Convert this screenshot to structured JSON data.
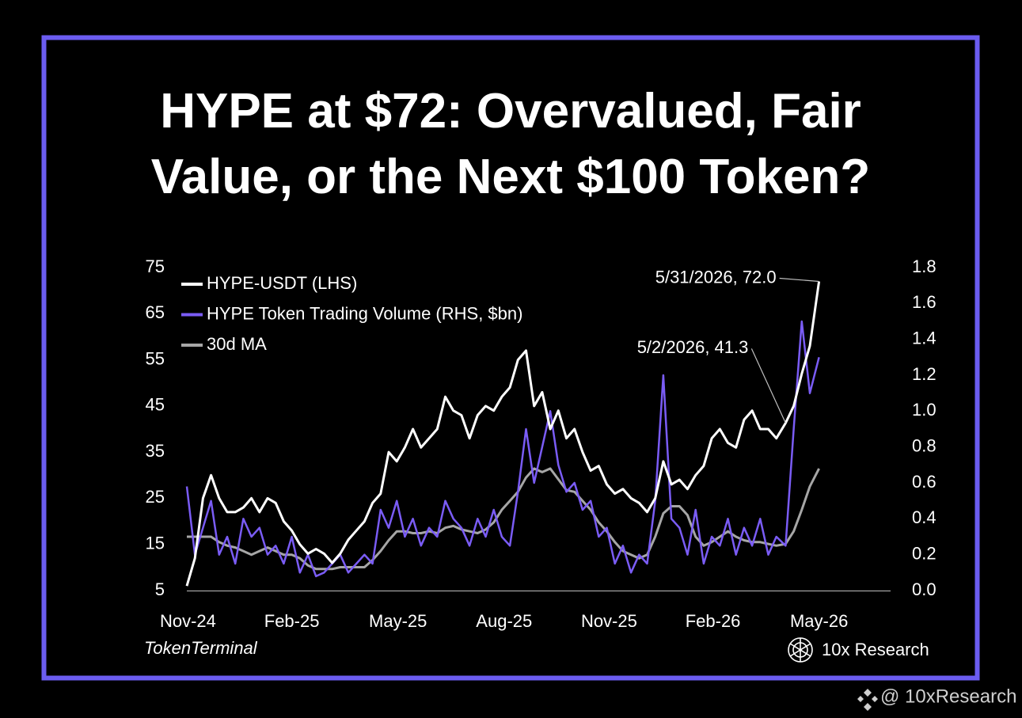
{
  "chart_data": {
    "type": "line",
    "title": "HYPE at $72: Overvalued, Fair Value, or the Next $100 Token?",
    "source": "TokenTerminal",
    "brand": "10x Research",
    "footer": "@ 10xResearch",
    "grid": false,
    "x": [
      "2024-11-29",
      "2024-12-06",
      "2024-12-13",
      "2024-12-20",
      "2024-12-27",
      "2025-01-03",
      "2025-01-10",
      "2025-01-17",
      "2025-01-24",
      "2025-01-31",
      "2025-02-07",
      "2025-02-14",
      "2025-02-21",
      "2025-02-28",
      "2025-03-07",
      "2025-03-14",
      "2025-03-21",
      "2025-03-28",
      "2025-04-04",
      "2025-04-11",
      "2025-04-18",
      "2025-04-25",
      "2025-05-02",
      "2025-05-09",
      "2025-05-16",
      "2025-05-23",
      "2025-05-30",
      "2025-06-06",
      "2025-06-13",
      "2025-06-20",
      "2025-06-27",
      "2025-07-04",
      "2025-07-11",
      "2025-07-18",
      "2025-07-25",
      "2025-08-01",
      "2025-08-08",
      "2025-08-15",
      "2025-08-22",
      "2025-08-29",
      "2025-09-05",
      "2025-09-12",
      "2025-09-19",
      "2025-09-26",
      "2025-10-03",
      "2025-10-10",
      "2025-10-17",
      "2025-10-24",
      "2025-10-31",
      "2025-11-07",
      "2025-11-14",
      "2025-11-21",
      "2025-11-28",
      "2025-12-05",
      "2025-12-12",
      "2025-12-19",
      "2025-12-26",
      "2026-01-02",
      "2026-01-09",
      "2026-01-16",
      "2026-01-23",
      "2026-01-30",
      "2026-02-06",
      "2026-02-13",
      "2026-02-20",
      "2026-02-27",
      "2026-03-06",
      "2026-03-13",
      "2026-03-20",
      "2026-03-27",
      "2026-04-03",
      "2026-04-10",
      "2026-04-17",
      "2026-04-24",
      "2026-05-02",
      "2026-05-09",
      "2026-05-16",
      "2026-05-23",
      "2026-05-31"
    ],
    "xlim": [
      "2024-11-29",
      "2026-08-01"
    ],
    "xticks": [
      {
        "value": "2024-11-30",
        "label": "Nov-24"
      },
      {
        "value": "2025-02-28",
        "label": "Feb-25"
      },
      {
        "value": "2025-05-31",
        "label": "May-25"
      },
      {
        "value": "2025-08-31",
        "label": "Aug-25"
      },
      {
        "value": "2025-11-30",
        "label": "Nov-25"
      },
      {
        "value": "2026-02-28",
        "label": "Feb-26"
      },
      {
        "value": "2026-05-31",
        "label": "May-26"
      }
    ],
    "ylim": [
      5,
      75
    ],
    "yticks": [
      5,
      15,
      25,
      35,
      45,
      55,
      65,
      75
    ],
    "y2lim": [
      0,
      1.8
    ],
    "y2ticks": [
      {
        "value": 0,
        "label": "0.0"
      },
      0.2,
      0.4,
      0.6,
      0.8,
      {
        "value": 1,
        "label": "1.0"
      },
      1.2,
      1.4,
      1.6,
      1.8
    ],
    "series": [
      {
        "name": "HYPE-USDT (LHS)",
        "color": "#ffffff",
        "values": [
          6,
          12,
          25,
          30,
          25,
          22,
          22,
          23,
          25,
          22,
          25,
          24,
          20,
          18,
          15,
          13,
          14,
          13,
          11,
          13,
          16,
          18,
          20,
          24,
          26,
          35,
          33,
          36,
          40,
          36,
          38,
          40,
          47,
          44,
          43,
          38,
          43,
          45,
          44,
          47,
          49,
          55,
          57,
          45,
          48,
          40,
          44,
          38,
          40,
          35,
          31,
          32,
          28,
          26,
          27,
          25,
          24,
          22,
          25,
          33,
          28,
          29,
          27,
          30,
          32,
          38,
          40,
          37,
          36,
          42,
          44,
          40,
          40,
          38,
          41.3,
          45,
          52,
          58,
          72
        ]
      },
      {
        "name": "HYPE Token Trading Volume (RHS, $bn)",
        "color": "#7a5cf5",
        "axis": "y2",
        "values": [
          0.58,
          0.2,
          0.35,
          0.5,
          0.2,
          0.3,
          0.15,
          0.4,
          0.3,
          0.35,
          0.2,
          0.25,
          0.15,
          0.3,
          0.1,
          0.2,
          0.08,
          0.1,
          0.15,
          0.2,
          0.1,
          0.15,
          0.2,
          0.15,
          0.45,
          0.35,
          0.5,
          0.3,
          0.4,
          0.25,
          0.35,
          0.3,
          0.5,
          0.4,
          0.35,
          0.25,
          0.4,
          0.3,
          0.45,
          0.3,
          0.25,
          0.55,
          0.9,
          0.6,
          0.8,
          1.0,
          0.7,
          0.55,
          0.6,
          0.45,
          0.5,
          0.3,
          0.35,
          0.15,
          0.25,
          0.1,
          0.2,
          0.15,
          0.5,
          1.2,
          0.4,
          0.35,
          0.2,
          0.45,
          0.15,
          0.3,
          0.25,
          0.4,
          0.2,
          0.35,
          0.25,
          0.4,
          0.2,
          0.3,
          0.25,
          0.9,
          1.5,
          1.1,
          1.3
        ]
      },
      {
        "name": "30d MA",
        "color": "#a6a6a6",
        "axis": "y2",
        "values": [
          0.3,
          0.3,
          0.3,
          0.3,
          0.27,
          0.25,
          0.24,
          0.22,
          0.2,
          0.22,
          0.24,
          0.22,
          0.2,
          0.2,
          0.18,
          0.14,
          0.12,
          0.12,
          0.12,
          0.13,
          0.13,
          0.13,
          0.13,
          0.17,
          0.22,
          0.28,
          0.33,
          0.33,
          0.32,
          0.32,
          0.33,
          0.32,
          0.35,
          0.36,
          0.34,
          0.33,
          0.32,
          0.34,
          0.38,
          0.45,
          0.5,
          0.55,
          0.63,
          0.68,
          0.66,
          0.68,
          0.62,
          0.56,
          0.55,
          0.5,
          0.45,
          0.38,
          0.33,
          0.27,
          0.22,
          0.2,
          0.18,
          0.2,
          0.3,
          0.43,
          0.47,
          0.47,
          0.42,
          0.3,
          0.25,
          0.27,
          0.3,
          0.33,
          0.3,
          0.28,
          0.27,
          0.27,
          0.26,
          0.25,
          0.26,
          0.33,
          0.45,
          0.58,
          0.68
        ]
      }
    ],
    "annotations": [
      {
        "text": "5/31/2026, 72.0",
        "x": "2026-05-31",
        "y": 72
      },
      {
        "text": "5/2/2026, 41.3",
        "x": "2026-05-02",
        "y": 41.3
      }
    ]
  }
}
